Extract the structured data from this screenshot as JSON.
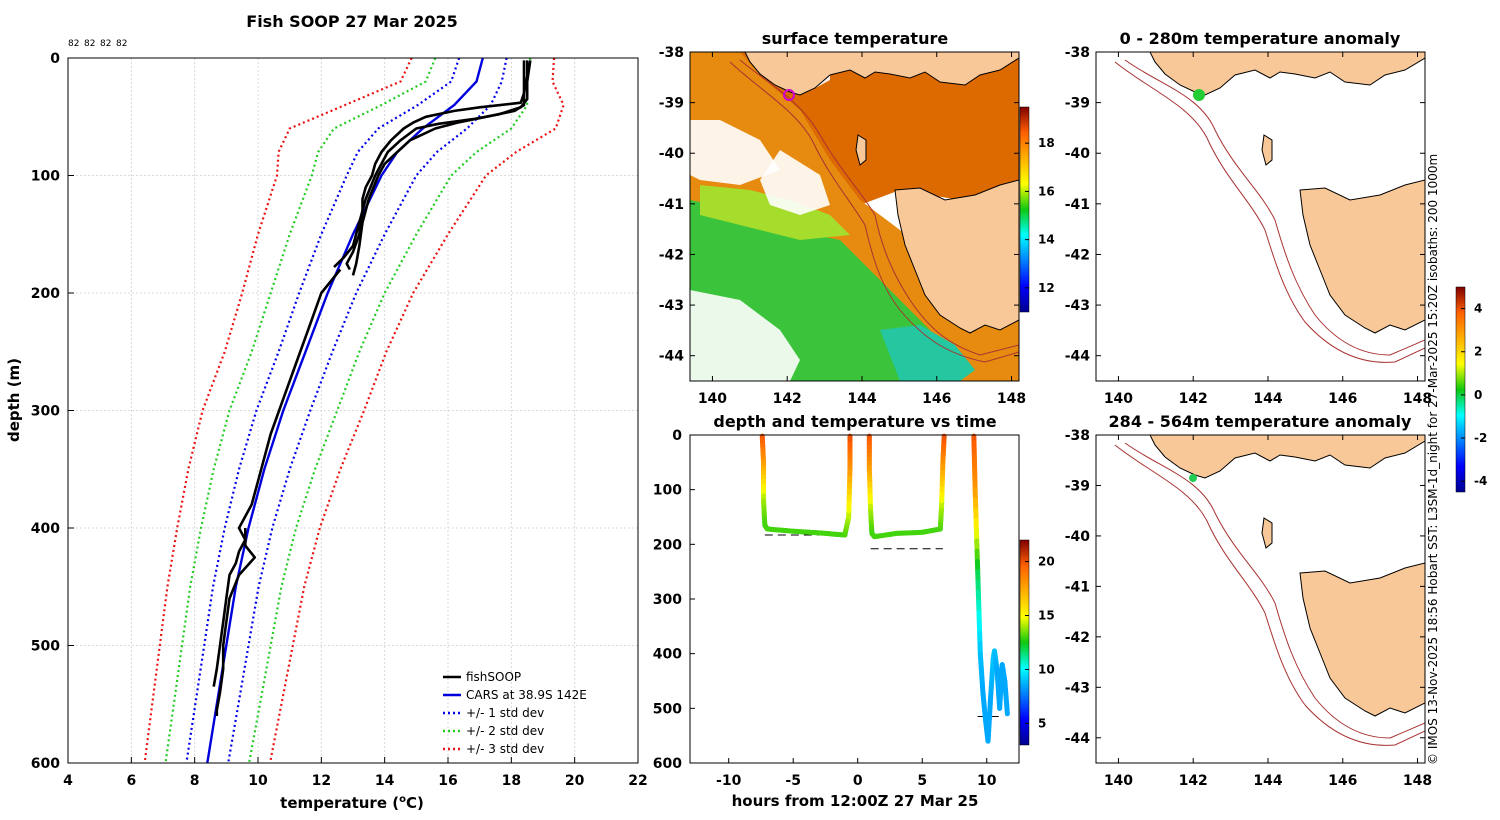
{
  "colors": {
    "fishsoop": "#000000",
    "cars": "#0000dd",
    "std1": "#0000ee",
    "std2": "#22cc22",
    "std3": "#ee1111",
    "land": "#f9c898",
    "isobath": "#a83232"
  },
  "side_text": "© IMOS 13-Nov-2025 18:56 Hobart SST: L3SM-1d_night for 27-Mar-2025 15:20Z isobaths: 200  1000m",
  "chart_data": [
    {
      "id": "profile",
      "type": "line",
      "title": "Fish SOOP 27 Mar 2025",
      "xlabel": "temperature (°C)",
      "ylabel": "depth (m)",
      "xlim": [
        4,
        22
      ],
      "ylim": [
        600,
        0
      ],
      "xticks": [
        4,
        6,
        8,
        10,
        12,
        14,
        16,
        18,
        20,
        22
      ],
      "yticks": [
        0,
        100,
        200,
        300,
        400,
        500,
        600
      ],
      "top_labels": [
        "82",
        "82",
        "82",
        "82"
      ],
      "legend": [
        "fishSOOP",
        "CARS at 38.9S 142E",
        "+/- 1 std dev",
        "+/- 2 std dev",
        "+/- 3 std dev"
      ],
      "cars_mean": {
        "depth": [
          0,
          20,
          40,
          60,
          80,
          100,
          150,
          200,
          250,
          300,
          350,
          400,
          450,
          500,
          550,
          600
        ],
        "temp": [
          17.1,
          16.9,
          16.2,
          15.2,
          14.4,
          13.9,
          13.0,
          12.2,
          11.5,
          10.8,
          10.2,
          9.7,
          9.3,
          9.0,
          8.7,
          8.4
        ]
      },
      "std_dev": {
        "depth": [
          0,
          20,
          40,
          60,
          80,
          100,
          150,
          200,
          250,
          300,
          350,
          400,
          450,
          500,
          550,
          600
        ],
        "sd": [
          0.75,
          0.8,
          1.15,
          1.4,
          1.25,
          1.1,
          1.0,
          0.9,
          0.85,
          0.85,
          0.8,
          0.75,
          0.72,
          0.7,
          0.68,
          0.66
        ]
      },
      "fishsoop_casts": [
        {
          "depth": [
            2,
            15,
            30,
            38,
            42,
            45,
            50,
            55,
            60,
            70,
            80,
            90,
            100,
            110,
            120,
            130,
            150,
            165,
            175,
            180
          ],
          "temp": [
            18.4,
            18.4,
            18.4,
            18.3,
            17.0,
            16.2,
            15.3,
            14.9,
            14.6,
            14.2,
            13.9,
            13.7,
            13.6,
            13.4,
            13.3,
            13.3,
            13.2,
            13.0,
            12.8,
            12.9
          ]
        },
        {
          "depth": [
            2,
            15,
            30,
            40,
            45,
            50,
            55,
            60,
            70,
            80,
            90,
            100,
            120,
            140,
            160,
            175,
            185
          ],
          "temp": [
            18.5,
            18.5,
            18.4,
            18.4,
            18.1,
            17.2,
            16.3,
            15.6,
            14.8,
            14.4,
            14.0,
            13.8,
            13.5,
            13.3,
            13.2,
            13.1,
            13.0
          ]
        },
        {
          "depth": [
            2,
            20,
            35,
            42,
            48,
            52,
            56,
            60,
            70,
            80,
            100,
            120,
            140,
            160,
            170,
            178
          ],
          "temp": [
            18.6,
            18.5,
            18.5,
            18.3,
            17.6,
            16.8,
            15.7,
            15.0,
            14.5,
            14.1,
            13.7,
            13.4,
            13.2,
            13.0,
            12.7,
            12.4
          ]
        },
        {
          "depth": [
            180,
            200,
            230,
            260,
            290,
            320,
            350,
            380,
            400,
            410,
            420,
            430,
            440,
            460,
            480,
            500,
            520,
            535
          ],
          "temp": [
            12.6,
            12.0,
            11.6,
            11.2,
            10.8,
            10.4,
            10.1,
            9.8,
            9.4,
            9.6,
            9.4,
            9.3,
            9.1,
            9.0,
            8.9,
            8.8,
            8.7,
            8.6
          ]
        },
        {
          "depth": [
            400,
            415,
            425,
            440,
            460,
            480,
            500,
            520,
            540,
            555,
            560
          ],
          "temp": [
            9.6,
            9.6,
            9.9,
            9.4,
            9.1,
            9.0,
            8.9,
            8.9,
            8.8,
            8.7,
            8.7
          ]
        }
      ]
    },
    {
      "id": "sst",
      "type": "heatmap",
      "title": "surface temperature",
      "xlim": [
        139.4,
        148.2
      ],
      "ylim": [
        -44.5,
        -38
      ],
      "xticks": [
        140,
        142,
        144,
        146,
        148
      ],
      "yticks": [
        -38,
        -39,
        -40,
        -41,
        -42,
        -43,
        -44
      ],
      "colorbar": {
        "ticks": [
          12,
          14,
          16,
          18
        ],
        "range": [
          11,
          19.5
        ]
      },
      "marker": {
        "lon": 142.0,
        "lat": -38.88
      }
    },
    {
      "id": "timeseries",
      "type": "scatter",
      "title": "depth and temperature vs time",
      "xlabel": "hours from 12:00Z 27 Mar 25",
      "xlim": [
        -13,
        12.5
      ],
      "ylim": [
        600,
        0
      ],
      "xticks": [
        -10,
        -5,
        0,
        5,
        10
      ],
      "yticks": [
        0,
        100,
        200,
        300,
        400,
        500,
        600
      ],
      "colorbar": {
        "ticks": [
          5,
          10,
          15,
          20
        ],
        "range": [
          3,
          22
        ]
      },
      "bottom_marks": [
        {
          "x": [
            -7.2,
            -0.8
          ],
          "y": 183
        },
        {
          "x": [
            1.0,
            6.6
          ],
          "y": 208
        },
        {
          "x": [
            9.3,
            11.2
          ],
          "y": 515
        }
      ],
      "tracks": [
        {
          "x": [
            -7.4,
            -7.3,
            -7.3,
            -7.2,
            -7.0,
            -5.0,
            -3.0,
            -1.0,
            -0.7,
            -0.6,
            -0.6
          ],
          "y": [
            2,
            50,
            120,
            165,
            172,
            176,
            179,
            183,
            150,
            60,
            2
          ],
          "t": [
            20,
            18,
            14,
            13,
            13,
            13,
            13,
            13,
            14,
            18,
            20
          ]
        },
        {
          "x": [
            0.9,
            0.9,
            1.0,
            1.1,
            1.3,
            3.0,
            5.0,
            6.4,
            6.5,
            6.6,
            6.7
          ],
          "y": [
            2,
            60,
            140,
            180,
            186,
            180,
            178,
            172,
            130,
            50,
            2
          ],
          "t": [
            20,
            18,
            14,
            13,
            13,
            13,
            13,
            13,
            14,
            18,
            20
          ]
        },
        {
          "x": [
            9.0,
            9.1,
            9.3,
            9.5,
            9.7,
            9.9,
            10.1,
            10.3,
            10.5,
            10.6,
            10.8,
            11.0,
            11.2,
            11.4,
            11.6
          ],
          "y": [
            2,
            100,
            250,
            400,
            470,
            520,
            560,
            480,
            410,
            395,
            430,
            500,
            420,
            450,
            510
          ],
          "t": [
            20,
            18,
            12,
            9,
            8.5,
            8.5,
            8.5,
            8.5,
            9,
            9,
            8.5,
            8.5,
            8.5,
            8.5,
            8.5
          ]
        }
      ]
    },
    {
      "id": "anomaly_upper",
      "type": "heatmap",
      "title": "0 - 280m temperature anomaly",
      "xlim": [
        139.4,
        148.2
      ],
      "ylim": [
        -44.5,
        -38
      ],
      "xticks": [
        140,
        142,
        144,
        146,
        148
      ],
      "yticks": [
        -38,
        -39,
        -40,
        -41,
        -42,
        -43,
        -44
      ],
      "colorbar": {
        "ticks": [
          -4,
          -2,
          0,
          2,
          4
        ],
        "range": [
          -4.5,
          5
        ]
      },
      "marker": {
        "lon": 142.1,
        "lat": -38.88,
        "value": 0.5
      }
    },
    {
      "id": "anomaly_lower",
      "type": "heatmap",
      "title": "284 - 564m temperature anomaly",
      "xlim": [
        139.4,
        148.2
      ],
      "ylim": [
        -44.5,
        -38
      ],
      "xticks": [
        140,
        142,
        144,
        146,
        148
      ],
      "yticks": [
        -38,
        -39,
        -40,
        -41,
        -42,
        -43,
        -44
      ],
      "marker": {
        "lon": 142.0,
        "lat": -38.88,
        "value": 0.3
      }
    }
  ]
}
